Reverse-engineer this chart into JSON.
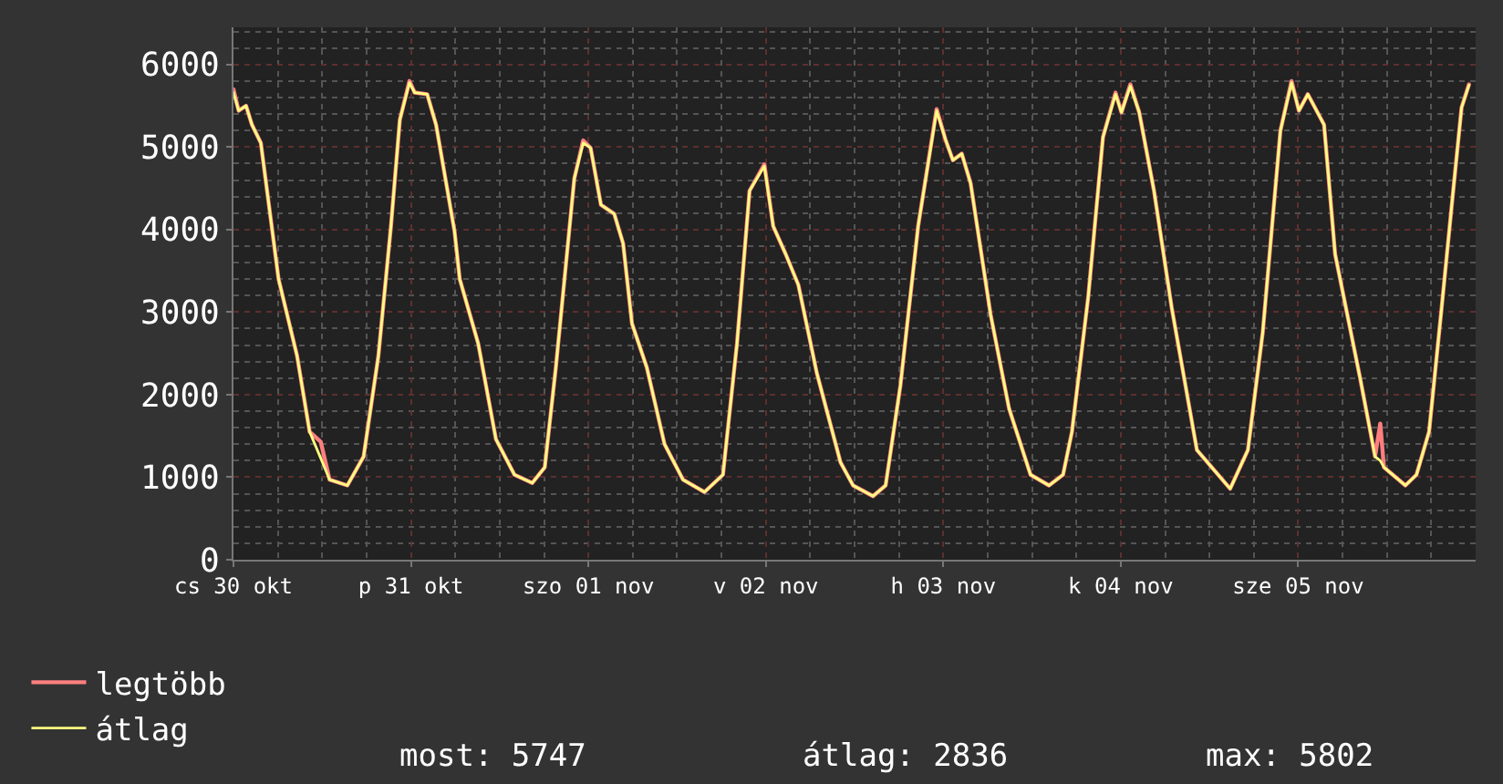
{
  "chart_data": {
    "type": "line",
    "x": [
      "--10-30T12:00",
      "--10-30T12:42",
      "--10-30T13:42",
      "--10-30T14:30",
      "--10-30T15:42",
      "--10-30T18:06",
      "--10-30T20:36",
      "--10-30T22:18",
      "--10-30T23:48",
      "--10-31T01:00",
      "--10-31T03:24",
      "--10-31T05:36",
      "--10-31T07:36",
      "--10-31T09:18",
      "--10-31T10:30",
      "--10-31T11:48",
      "--10-31T12:30",
      "--10-31T14:12",
      "--10-31T15:24",
      "--10-31T17:54",
      "--10-31T18:36",
      "--10-31T21:06",
      "--10-31T23:30",
      "--11-01T02:00",
      "--11-01T04:24",
      "--11-01T06:06",
      "--11-01T07:36",
      "--11-01T10:06",
      "--11-01T11:18",
      "--11-01T12:18",
      "--11-01T13:42",
      "--11-01T15:30",
      "--11-01T16:42",
      "--11-01T17:54",
      "--11-01T19:54",
      "--11-01T22:18",
      "--11-02T00:48",
      "--11-02T03:42",
      "--11-02T06:12",
      "--11-02T08:06",
      "--11-02T09:48",
      "--11-02T11:48",
      "--11-02T13:00",
      "--11-02T14:42",
      "--11-02T16:24",
      "--11-02T18:54",
      "--11-02T22:06",
      "--11-02T23:48",
      "--11-03T02:30",
      "--11-03T04:12",
      "--11-03T06:12",
      "--11-03T08:36",
      "--11-03T11:06",
      "--11-03T12:18",
      "--11-03T13:18",
      "--11-03T14:30",
      "--11-03T15:42",
      "--11-03T18:24",
      "--11-03T20:54",
      "--11-03T23:48",
      "--11-04T02:18",
      "--11-04T04:12",
      "--11-04T05:24",
      "--11-04T07:36",
      "--11-04T09:36",
      "--11-04T11:18",
      "--11-04T12:06",
      "--11-04T13:18",
      "--11-04T14:30",
      "--11-04T16:30",
      "--11-04T18:54",
      "--11-04T22:18",
      "--11-05T02:48",
      "--11-05T05:12",
      "--11-05T07:12",
      "--11-05T09:36",
      "--11-05T11:06",
      "--11-05T12:06",
      "--11-05T13:18",
      "--11-05T15:30",
      "--11-05T17:00",
      "--11-05T20:24",
      "--11-05T22:24",
      "--11-05T23:06",
      "--11-05T23:36",
      "--11-06T02:30",
      "--11-06T04:00",
      "--11-06T05:42",
      "--11-06T07:24",
      "--11-06T08:54",
      "--11-06T10:06",
      "--11-06T11:06"
    ],
    "series": [
      {
        "name": "legtöbb",
        "color": "#ff7f7f",
        "values": [
          5700,
          5440,
          5500,
          5270,
          5050,
          3400,
          2470,
          1550,
          1430,
          970,
          900,
          1250,
          2470,
          4040,
          5330,
          5800,
          5660,
          5640,
          5270,
          3980,
          3400,
          2620,
          1460,
          1030,
          930,
          1120,
          2330,
          4620,
          5080,
          4990,
          4300,
          4190,
          3830,
          2860,
          2330,
          1400,
          970,
          820,
          1030,
          2620,
          4470,
          4790,
          4040,
          3700,
          3330,
          2260,
          1180,
          900,
          770,
          900,
          2110,
          4040,
          5460,
          5090,
          4840,
          4920,
          4560,
          2970,
          1830,
          1030,
          900,
          1030,
          1550,
          3180,
          5120,
          5660,
          5420,
          5760,
          5420,
          4470,
          3050,
          1330,
          860,
          1330,
          2750,
          5200,
          5800,
          5440,
          5640,
          5270,
          3700,
          2190,
          1250,
          1650,
          1120,
          900,
          1030,
          1550,
          3050,
          4410,
          5480,
          5760
        ]
      },
      {
        "name": "átlag",
        "color": "#ffff80",
        "values": [
          5660,
          5440,
          5500,
          5270,
          5050,
          3400,
          2470,
          1550,
          1230,
          970,
          900,
          1250,
          2470,
          4040,
          5330,
          5780,
          5660,
          5640,
          5270,
          3980,
          3400,
          2620,
          1460,
          1030,
          930,
          1120,
          2330,
          4620,
          5050,
          4990,
          4300,
          4190,
          3830,
          2860,
          2330,
          1400,
          970,
          820,
          1030,
          2620,
          4470,
          4770,
          4040,
          3700,
          3330,
          2260,
          1180,
          900,
          770,
          900,
          2110,
          4040,
          5440,
          5090,
          4840,
          4920,
          4560,
          2970,
          1830,
          1030,
          900,
          1030,
          1550,
          3180,
          5120,
          5640,
          5420,
          5740,
          5420,
          4470,
          3050,
          1330,
          860,
          1330,
          2750,
          5200,
          5780,
          5440,
          5640,
          5270,
          3700,
          2190,
          1250,
          1200,
          1120,
          900,
          1030,
          1550,
          3050,
          4410,
          5480,
          5750
        ]
      }
    ],
    "xlim": [
      "--10-30T12:00",
      "--11-06T12:00"
    ],
    "xticks": [
      {
        "value": "--10-30T12:00",
        "label": "cs 30 okt"
      },
      {
        "value": "--10-31T12:00",
        "label": "p 31 okt"
      },
      {
        "value": "--11-01T12:00",
        "label": "szo 01 nov"
      },
      {
        "value": "--11-02T12:00",
        "label": "v 02 nov"
      },
      {
        "value": "--11-03T12:00",
        "label": "h 03 nov"
      },
      {
        "value": "--11-04T12:00",
        "label": "k 04 nov"
      },
      {
        "value": "--11-05T12:00",
        "label": "sze 05 nov"
      }
    ],
    "ylim": [
      0,
      6450
    ],
    "yticks": [
      0,
      1000,
      2000,
      3000,
      4000,
      5000,
      6000
    ],
    "grid": true,
    "legend": "bottom left",
    "annotations": [
      "most: 5747",
      "átlag: 2836",
      "max: 5802"
    ]
  }
}
